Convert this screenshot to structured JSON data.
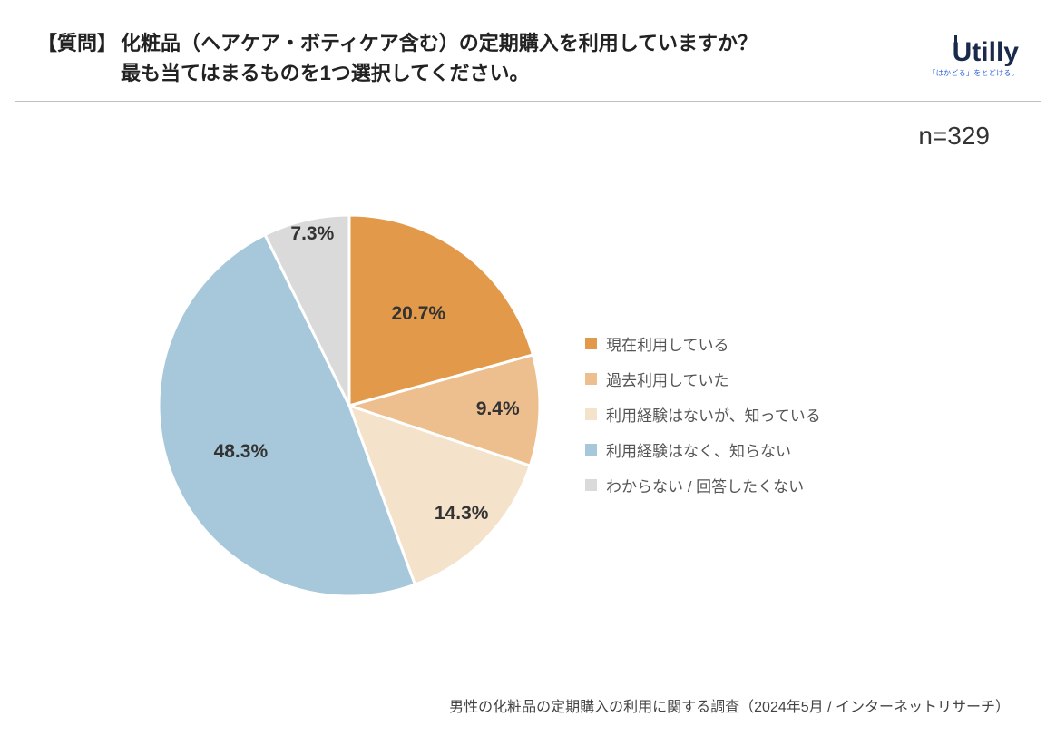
{
  "header": {
    "q_label": "【質問】",
    "q_line1": "化粧品（ヘアケア・ボティケア含む）の定期購入を利用していますか？",
    "q_line2": "最も当てはまるものを1つ選択してください。",
    "logo_main": "Utilly",
    "logo_sub": "「はかどる」をとどける。"
  },
  "sample": {
    "label": "n=329"
  },
  "chart": {
    "type": "pie",
    "background_color": "#ffffff",
    "stroke_color": "#ffffff",
    "stroke_width": 3,
    "radius": 210,
    "label_fontsize": 21,
    "label_color": "#333333",
    "legend_fontsize": 17,
    "legend_color": "#555555",
    "start_angle_deg": -90,
    "slices": [
      {
        "label": "現在利用している",
        "value": 20.7,
        "display": "20.7%",
        "color": "#e29a4a"
      },
      {
        "label": "過去利用していた",
        "value": 9.4,
        "display": "9.4%",
        "color": "#edbf8f"
      },
      {
        "label": "利用経験はないが、知っている",
        "value": 14.3,
        "display": "14.3%",
        "color": "#f4e2ca"
      },
      {
        "label": "利用経験はなく、知らない",
        "value": 48.3,
        "display": "48.3%",
        "color": "#a6c8da"
      },
      {
        "label": "わからない / 回答したくない",
        "value": 7.3,
        "display": "7.3%",
        "color": "#dadada"
      }
    ],
    "label_offsets": [
      {
        "r": 0.6
      },
      {
        "r": 0.78
      },
      {
        "r": 0.82
      },
      {
        "r": 0.62
      },
      {
        "r": 0.92,
        "angle_adj": 1
      }
    ]
  },
  "footer": {
    "text": "男性の化粧品の定期購入の利用に関する調査（2024年5月 / インターネットリサーチ）"
  }
}
